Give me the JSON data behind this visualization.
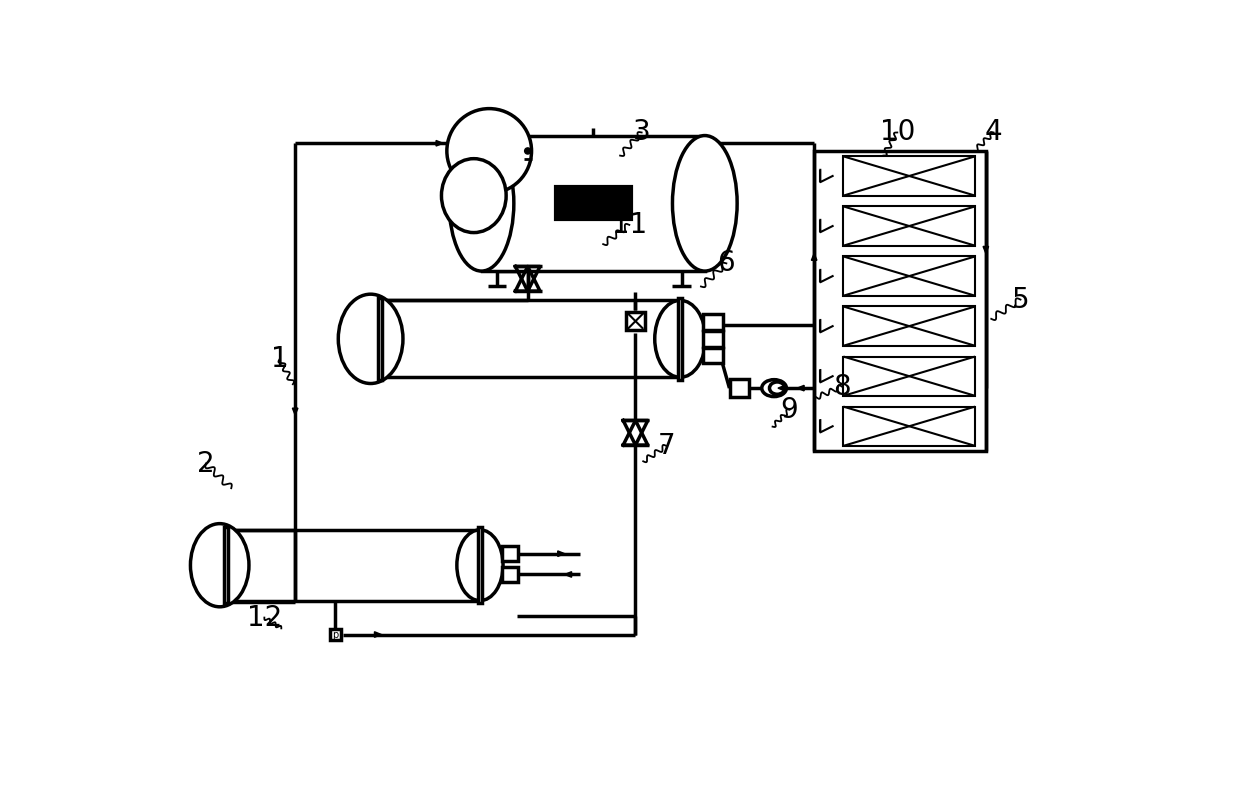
{
  "bg_color": "#ffffff",
  "lc": "#000000",
  "lw": 2.0,
  "lw2": 2.5,
  "lw3": 3.0,
  "label_fontsize": 20,
  "fig_w": 12.4,
  "fig_h": 7.96,
  "dpi": 100,
  "labels": [
    [
      "1",
      158,
      342,
      175,
      375,
      3
    ],
    [
      "2",
      62,
      478,
      95,
      510,
      3
    ],
    [
      "3",
      628,
      48,
      600,
      78,
      3
    ],
    [
      "4",
      1085,
      48,
      1060,
      72,
      3
    ],
    [
      "5",
      1120,
      265,
      1082,
      290,
      3
    ],
    [
      "6",
      738,
      218,
      705,
      248,
      3
    ],
    [
      "7",
      660,
      455,
      630,
      475,
      3
    ],
    [
      "8",
      888,
      378,
      855,
      392,
      3
    ],
    [
      "9",
      820,
      408,
      798,
      430,
      3
    ],
    [
      "10",
      960,
      48,
      942,
      78,
      3
    ],
    [
      "11",
      612,
      168,
      578,
      193,
      3
    ],
    [
      "12",
      138,
      678,
      160,
      692,
      3
    ]
  ]
}
